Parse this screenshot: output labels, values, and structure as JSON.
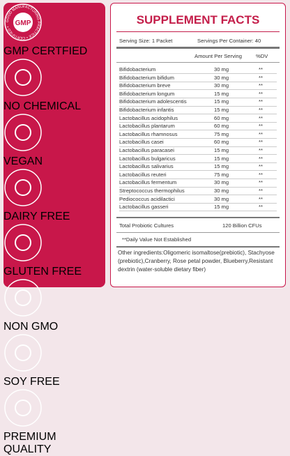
{
  "badges": [
    {
      "label": "GMP CERTFIED",
      "icon_text": "GMP",
      "ring_text": "GOOD MANUFACTURING PRACTICE • CERTIFIED •"
    },
    {
      "label": "NO CHEMICAL"
    },
    {
      "label": "VEGAN"
    },
    {
      "label": "DAIRY FREE"
    },
    {
      "label": "GLUTEN FREE"
    },
    {
      "label": "NON GMO"
    },
    {
      "label": "SOY FREE"
    },
    {
      "label": "PREMIUM QUALITY"
    }
  ],
  "facts": {
    "title": "SUPPLEMENT FACTS",
    "serving_size": "Serving Size: 1 Packet",
    "servings_per_container": "Servings Per Container: 40",
    "amount_header": "Amount Per Serving",
    "dv_header": "%DV",
    "rows": [
      [
        "Bifidobacterium",
        "30 mg",
        "**"
      ],
      [
        "Bifidobacterium bifidum",
        "30 mg",
        "**"
      ],
      [
        "Bifidobacterium breve",
        "30 mg",
        "**"
      ],
      [
        "Bifidobacterium longum",
        "15 mg",
        "**"
      ],
      [
        "Bifidobacterium adolescentis",
        "15 mg",
        "**"
      ],
      [
        "Bifidobacterium infantis",
        "15 mg",
        "**"
      ],
      [
        "Lactobacillus acidophilus",
        "60 mg",
        "**"
      ],
      [
        "Lactobacillus plantarum",
        "60 mg",
        "**"
      ],
      [
        "Lactobacillus rhamnosus",
        "75 mg",
        "**"
      ],
      [
        "Lactobacillus casei",
        "60 mg",
        "**"
      ],
      [
        "Lactobacillus paracasei",
        "15 mg",
        "**"
      ],
      [
        "Lactobacillus bulgaricus",
        "15 mg",
        "**"
      ],
      [
        "Lactobacillus salivarius",
        "15 mg",
        "**"
      ],
      [
        "Lactobacillus reuteri",
        "75 mg",
        "**"
      ],
      [
        "Lactobacillus fermentum",
        "30 mg",
        "**"
      ],
      [
        "Streptococcus thermophilus",
        "30 mg",
        "**"
      ],
      [
        "Pediococcus acidilactici",
        "30 mg",
        "**"
      ],
      [
        "Lactobacillus gasseri",
        "15 mg",
        "**"
      ]
    ],
    "total_label": "Total Probiotic Cultures",
    "total_amount": "120 Billion CFUs",
    "footnote": "**Daily Value Not Established",
    "other_ingredients": "Other ingredients:Oligomeric isomaltose(prebiotic), Stachyose (prebiotic),Cranberry, Rose petal powder, Blueberry,Resistant dextrin (water-soluble dietary fiber)"
  }
}
